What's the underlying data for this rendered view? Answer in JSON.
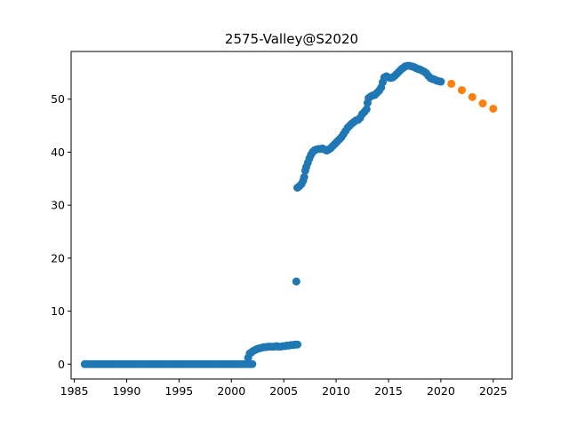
{
  "chart_data": {
    "type": "scatter",
    "title": "2575-Valley@S2020",
    "xlabel": "",
    "ylabel": "",
    "xlim": [
      1984.7,
      2026.8
    ],
    "ylim": [
      -2.8,
      59.0
    ],
    "xticks": [
      1985,
      1990,
      1995,
      2000,
      2005,
      2010,
      2015,
      2020,
      2025
    ],
    "yticks": [
      0,
      10,
      20,
      30,
      40,
      50
    ],
    "grid": false,
    "legend": "none",
    "colors": {
      "historical": "#1f77b4",
      "forecast": "#ff7f0e"
    },
    "series": [
      {
        "key": "historical",
        "points": [
          [
            1986.0,
            0.0
          ],
          [
            1986.25,
            0.0
          ],
          [
            1986.5,
            0.0
          ],
          [
            1986.75,
            0.0
          ],
          [
            1987.0,
            0.0
          ],
          [
            1987.25,
            0.0
          ],
          [
            1987.5,
            0.0
          ],
          [
            1987.75,
            0.0
          ],
          [
            1988.0,
            0.0
          ],
          [
            1988.25,
            0.0
          ],
          [
            1988.5,
            0.0
          ],
          [
            1988.75,
            0.0
          ],
          [
            1989.0,
            0.0
          ],
          [
            1989.25,
            0.0
          ],
          [
            1989.5,
            0.0
          ],
          [
            1989.75,
            0.0
          ],
          [
            1990.0,
            0.0
          ],
          [
            1990.25,
            0.0
          ],
          [
            1990.5,
            0.0
          ],
          [
            1990.75,
            0.0
          ],
          [
            1991.0,
            0.0
          ],
          [
            1991.25,
            0.0
          ],
          [
            1991.5,
            0.0
          ],
          [
            1991.75,
            0.0
          ],
          [
            1992.0,
            0.0
          ],
          [
            1992.25,
            0.0
          ],
          [
            1992.5,
            0.0
          ],
          [
            1992.75,
            0.0
          ],
          [
            1993.0,
            0.0
          ],
          [
            1993.25,
            0.0
          ],
          [
            1993.5,
            0.0
          ],
          [
            1993.75,
            0.0
          ],
          [
            1994.0,
            0.0
          ],
          [
            1994.25,
            0.0
          ],
          [
            1994.5,
            0.0
          ],
          [
            1994.75,
            0.0
          ],
          [
            1995.0,
            0.0
          ],
          [
            1995.25,
            0.0
          ],
          [
            1995.5,
            0.0
          ],
          [
            1995.75,
            0.0
          ],
          [
            1996.0,
            0.0
          ],
          [
            1996.25,
            0.0
          ],
          [
            1996.5,
            0.0
          ],
          [
            1996.75,
            0.0
          ],
          [
            1997.0,
            0.0
          ],
          [
            1997.25,
            0.0
          ],
          [
            1997.5,
            0.0
          ],
          [
            1997.75,
            0.0
          ],
          [
            1998.0,
            0.0
          ],
          [
            1998.25,
            0.0
          ],
          [
            1998.5,
            0.0
          ],
          [
            1998.75,
            0.0
          ],
          [
            1999.0,
            0.0
          ],
          [
            1999.25,
            0.0
          ],
          [
            1999.5,
            0.0
          ],
          [
            1999.75,
            0.0
          ],
          [
            2000.0,
            0.0
          ],
          [
            2000.25,
            0.0
          ],
          [
            2000.5,
            0.0
          ],
          [
            2000.75,
            0.0
          ],
          [
            2001.0,
            0.0
          ],
          [
            2001.25,
            0.0
          ],
          [
            2001.5,
            0.0
          ],
          [
            2001.75,
            0.0
          ],
          [
            2002.0,
            0.0
          ],
          [
            2001.6,
            1.2
          ],
          [
            2001.75,
            2.0
          ],
          [
            2001.9,
            2.2
          ],
          [
            2002.1,
            2.5
          ],
          [
            2002.3,
            2.7
          ],
          [
            2002.5,
            2.9
          ],
          [
            2002.7,
            3.0
          ],
          [
            2002.9,
            3.1
          ],
          [
            2003.1,
            3.2
          ],
          [
            2003.3,
            3.2
          ],
          [
            2003.5,
            3.3
          ],
          [
            2003.7,
            3.3
          ],
          [
            2003.9,
            3.3
          ],
          [
            2004.1,
            3.3
          ],
          [
            2004.3,
            3.4
          ],
          [
            2004.5,
            3.3
          ],
          [
            2004.7,
            3.3
          ],
          [
            2004.9,
            3.4
          ],
          [
            2005.1,
            3.4
          ],
          [
            2005.3,
            3.5
          ],
          [
            2005.5,
            3.5
          ],
          [
            2005.7,
            3.6
          ],
          [
            2005.9,
            3.6
          ],
          [
            2006.1,
            3.7
          ],
          [
            2006.3,
            3.7
          ],
          [
            2006.2,
            15.6
          ],
          [
            2006.3,
            33.3
          ],
          [
            2006.5,
            33.6
          ],
          [
            2006.7,
            34.0
          ],
          [
            2006.85,
            34.6
          ],
          [
            2006.95,
            35.3
          ],
          [
            2007.05,
            36.5
          ],
          [
            2007.15,
            37.2
          ],
          [
            2007.3,
            38.0
          ],
          [
            2007.45,
            38.8
          ],
          [
            2007.6,
            39.5
          ],
          [
            2007.75,
            40.0
          ],
          [
            2007.9,
            40.3
          ],
          [
            2008.1,
            40.5
          ],
          [
            2008.3,
            40.6
          ],
          [
            2008.5,
            40.6
          ],
          [
            2008.7,
            40.7
          ],
          [
            2008.9,
            40.5
          ],
          [
            2009.1,
            40.3
          ],
          [
            2009.3,
            40.5
          ],
          [
            2009.5,
            40.8
          ],
          [
            2009.7,
            41.2
          ],
          [
            2009.9,
            41.6
          ],
          [
            2010.1,
            42.0
          ],
          [
            2010.3,
            42.4
          ],
          [
            2010.5,
            42.8
          ],
          [
            2010.7,
            43.4
          ],
          [
            2010.9,
            44.0
          ],
          [
            2011.1,
            44.6
          ],
          [
            2011.3,
            45.0
          ],
          [
            2011.5,
            45.4
          ],
          [
            2011.7,
            45.7
          ],
          [
            2011.9,
            46.0
          ],
          [
            2012.1,
            46.1
          ],
          [
            2012.3,
            46.5
          ],
          [
            2012.5,
            47.2
          ],
          [
            2012.7,
            47.6
          ],
          [
            2012.9,
            48.1
          ],
          [
            2013.0,
            49.3
          ],
          [
            2013.1,
            50.2
          ],
          [
            2013.3,
            50.5
          ],
          [
            2013.5,
            50.7
          ],
          [
            2013.7,
            50.8
          ],
          [
            2013.9,
            51.2
          ],
          [
            2014.1,
            51.6
          ],
          [
            2014.3,
            52.2
          ],
          [
            2014.45,
            53.2
          ],
          [
            2014.6,
            54.1
          ],
          [
            2014.8,
            54.3
          ],
          [
            2015.0,
            54.1
          ],
          [
            2015.2,
            54.0
          ],
          [
            2015.4,
            54.1
          ],
          [
            2015.6,
            54.4
          ],
          [
            2015.8,
            54.8
          ],
          [
            2016.0,
            55.2
          ],
          [
            2016.2,
            55.6
          ],
          [
            2016.4,
            55.9
          ],
          [
            2016.6,
            56.2
          ],
          [
            2016.8,
            56.3
          ],
          [
            2017.0,
            56.3
          ],
          [
            2017.2,
            56.2
          ],
          [
            2017.4,
            56.1
          ],
          [
            2017.6,
            55.9
          ],
          [
            2017.8,
            55.7
          ],
          [
            2018.0,
            55.6
          ],
          [
            2018.2,
            55.4
          ],
          [
            2018.4,
            55.2
          ],
          [
            2018.6,
            54.9
          ],
          [
            2018.8,
            54.4
          ],
          [
            2019.0,
            54.0
          ],
          [
            2019.2,
            53.8
          ],
          [
            2019.4,
            53.7
          ],
          [
            2019.6,
            53.5
          ],
          [
            2019.8,
            53.4
          ],
          [
            2020.0,
            53.3
          ]
        ]
      },
      {
        "key": "forecast",
        "points": [
          [
            2021.0,
            52.9
          ],
          [
            2022.0,
            51.7
          ],
          [
            2023.0,
            50.4
          ],
          [
            2024.0,
            49.2
          ],
          [
            2025.0,
            48.2
          ]
        ]
      }
    ]
  }
}
